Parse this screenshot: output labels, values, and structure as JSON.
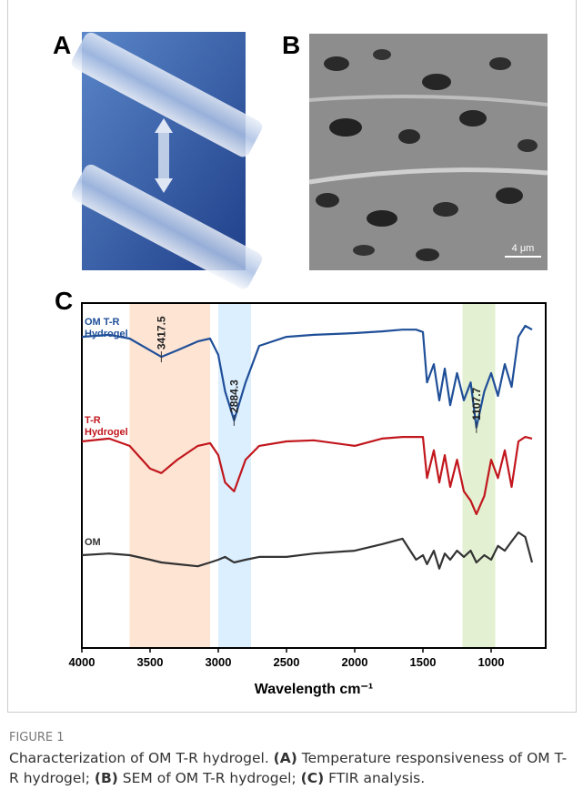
{
  "panels": {
    "A": {
      "label": "A"
    },
    "B": {
      "label": "B",
      "scale_bar": "4 μm"
    }
  },
  "chart_data": {
    "type": "line",
    "label": "C",
    "xlabel": "Wavelength cm⁻¹",
    "x": [
      4000,
      3800,
      3650,
      3500,
      3417.5,
      3300,
      3150,
      3060,
      3000,
      2950,
      2884.3,
      2800,
      2700,
      2500,
      2300,
      2000,
      1800,
      1650,
      1550,
      1500,
      1470,
      1420,
      1380,
      1340,
      1300,
      1250,
      1200,
      1150,
      1107.7,
      1050,
      1000,
      950,
      900,
      850,
      800,
      750,
      700
    ],
    "series": [
      {
        "name": "OM T-R Hydrogel",
        "color": "#1f4f98",
        "values": [
          90.2,
          90.8,
          89.7,
          86.3,
          84.4,
          86.3,
          88.9,
          89.7,
          85.0,
          74.4,
          66.0,
          77.0,
          87.6,
          90.2,
          90.8,
          91.3,
          91.8,
          92.3,
          92.3,
          91.6,
          77.0,
          82.3,
          71.8,
          81.0,
          70.4,
          79.7,
          71.8,
          77.0,
          63.9,
          74.4,
          79.7,
          73.1,
          82.3,
          75.7,
          90.2,
          93.4,
          92.3
        ]
      },
      {
        "name": "T-R Hydrogel",
        "color": "#c1171d",
        "values": [
          59.9,
          60.7,
          58.6,
          52.0,
          50.7,
          54.6,
          58.6,
          59.4,
          55.9,
          48.0,
          45.4,
          54.6,
          58.6,
          59.9,
          60.2,
          58.6,
          60.7,
          61.2,
          61.2,
          61.2,
          49.3,
          57.3,
          48.0,
          55.9,
          46.7,
          54.6,
          45.4,
          42.7,
          38.8,
          44.1,
          54.6,
          49.3,
          57.3,
          46.7,
          59.9,
          61.2,
          60.7
        ]
      },
      {
        "name": "OM",
        "color": "#333333",
        "values": [
          26.9,
          27.4,
          26.9,
          25.6,
          24.8,
          24.3,
          23.7,
          24.8,
          25.6,
          26.4,
          24.8,
          25.6,
          26.4,
          26.4,
          27.4,
          28.2,
          30.1,
          31.7,
          25.6,
          26.9,
          24.3,
          28.2,
          23.0,
          27.4,
          25.6,
          28.2,
          26.4,
          28.2,
          24.8,
          26.9,
          25.6,
          29.6,
          28.2,
          30.9,
          33.5,
          32.2,
          24.8
        ]
      }
    ],
    "peak_labels": [
      3417.5,
      2884.3,
      1107.7
    ],
    "bands": [
      {
        "range": [
          3650,
          3060
        ],
        "color": "#fde4d3"
      },
      {
        "range": [
          3000,
          2760
        ],
        "color": "#dcefff"
      },
      {
        "range": [
          1210,
          970
        ],
        "color": "#e3f0d2"
      }
    ],
    "xlim": [
      4000,
      600
    ],
    "ylim": [
      0,
      100
    ],
    "xticks": [
      4000,
      3500,
      3000,
      2500,
      2000,
      1500,
      1000
    ]
  },
  "caption": {
    "figure": "FIGURE 1",
    "text": [
      "Characterization of OM T-R hydrogel. ",
      "(A)",
      " Temperature responsiveness of OM T-R hydrogel; ",
      "(B)",
      " SEM of OM T-R hydrogel; ",
      "(C)",
      " FTIR analysis."
    ]
  }
}
